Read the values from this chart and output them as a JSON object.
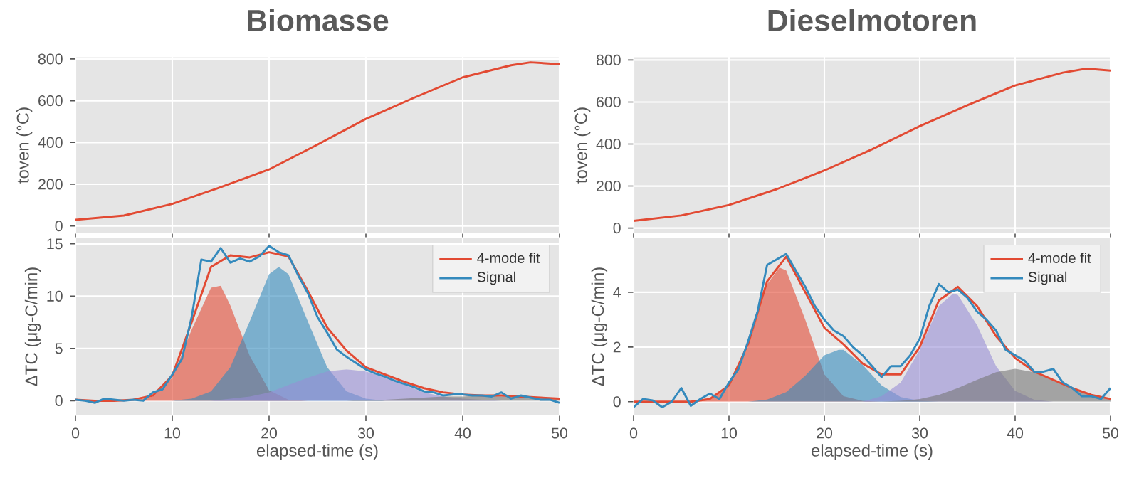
{
  "chart_data": [
    {
      "type": "line",
      "title": "Biomasse",
      "ylabel": "toven (°C)",
      "xlim": [
        0,
        50
      ],
      "ylim": [
        -35,
        810
      ],
      "xticks": [
        {
          "value": 0,
          "label": null
        },
        {
          "value": 10,
          "label": null
        },
        {
          "value": 20,
          "label": null
        },
        {
          "value": 30,
          "label": null
        },
        {
          "value": 40,
          "label": null
        },
        {
          "value": 50,
          "label": null
        }
      ],
      "yticks": [
        0,
        200,
        400,
        600,
        800
      ],
      "grid": true,
      "tick_labels": "y",
      "series": [
        {
          "type": "line",
          "color": "#e24a33",
          "x": [
            0,
            5,
            10,
            14.7,
            20,
            25,
            30,
            35,
            40,
            45,
            47,
            50
          ],
          "values": [
            30,
            50,
            106,
            181,
            271,
            390,
            513,
            615,
            712,
            770,
            784,
            775
          ]
        }
      ]
    },
    {
      "type": "line",
      "title": "Dieselmotoren",
      "ylabel": "toven (°C)",
      "xlim": [
        0,
        50
      ],
      "ylim": [
        -25,
        815
      ],
      "xticks": [
        {
          "value": 0,
          "label": null
        },
        {
          "value": 10,
          "label": null
        },
        {
          "value": 20,
          "label": null
        },
        {
          "value": 30,
          "label": null
        },
        {
          "value": 40,
          "label": null
        },
        {
          "value": 50,
          "label": null
        }
      ],
      "yticks": [
        0,
        200,
        400,
        600,
        800
      ],
      "grid": true,
      "tick_labels": "y",
      "series": [
        {
          "type": "line",
          "color": "#e24a33",
          "x": [
            0,
            5,
            10,
            15,
            20,
            25,
            30,
            35,
            40,
            45,
            47.5,
            50
          ],
          "values": [
            34,
            60,
            110,
            185,
            274,
            375,
            485,
            585,
            679,
            740,
            759,
            750
          ]
        }
      ]
    },
    {
      "type": "line",
      "xlabel": "elapsed-time (s)",
      "ylabel": "ΔTC (μg-C/min)",
      "xlim": [
        0,
        50
      ],
      "ylim": [
        -1.4,
        15.6
      ],
      "xticks": [
        0,
        10,
        20,
        30,
        40,
        50
      ],
      "yticks": [
        0,
        5,
        10,
        15
      ],
      "grid": true,
      "legend": "top right",
      "series": [
        {
          "type": "area",
          "color": "#e24a33",
          "x": [
            0,
            2,
            4,
            6,
            8,
            10,
            12,
            14,
            15,
            16,
            18,
            20,
            22,
            24,
            26,
            50
          ],
          "values": [
            0,
            0,
            0,
            0,
            0.4,
            2.2,
            6.8,
            10.8,
            11,
            9.1,
            4.3,
            1.0,
            0.1,
            0,
            0,
            0
          ]
        },
        {
          "type": "area",
          "color": "#348abd",
          "x": [
            0,
            10,
            12,
            14,
            16,
            18,
            20,
            21,
            22,
            24,
            26,
            28,
            30,
            32,
            50
          ],
          "values": [
            0,
            0,
            0.2,
            0.9,
            3.2,
            7.6,
            12.1,
            12.8,
            12.1,
            7.6,
            3.2,
            0.9,
            0.2,
            0,
            0
          ]
        },
        {
          "type": "area",
          "color": "#988ed5",
          "x": [
            0,
            14,
            16,
            18,
            20,
            22,
            24,
            26,
            28,
            30,
            32,
            34,
            36,
            38,
            40,
            42,
            44,
            50
          ],
          "values": [
            0,
            0,
            0.2,
            0.4,
            0.8,
            1.5,
            2.2,
            2.8,
            3.0,
            2.8,
            2.2,
            1.5,
            0.8,
            0.4,
            0.2,
            0.1,
            0,
            0
          ]
        },
        {
          "type": "area",
          "color": "#777777",
          "x": [
            0,
            26,
            28,
            30,
            32,
            34,
            36,
            38,
            40,
            42,
            44,
            46,
            48,
            50
          ],
          "values": [
            0,
            0,
            0,
            0.1,
            0.1,
            0.2,
            0.3,
            0.4,
            0.4,
            0.5,
            0.4,
            0.4,
            0.3,
            0.2
          ]
        },
        {
          "type": "line",
          "name": "4-mode fit",
          "color": "#e24a33",
          "x": [
            0,
            2,
            4,
            6,
            8,
            10,
            12,
            14,
            16,
            18,
            20,
            22,
            24,
            26,
            28,
            30,
            32,
            34,
            36,
            38,
            40,
            42,
            44,
            46,
            48,
            50
          ],
          "values": [
            0.1,
            0,
            0,
            0.1,
            0.5,
            2.4,
            7.5,
            12.8,
            13.9,
            13.7,
            14.2,
            13.8,
            10.5,
            7.0,
            4.8,
            3.2,
            2.5,
            1.8,
            1.2,
            0.8,
            0.6,
            0.5,
            0.5,
            0.4,
            0.3,
            0.2
          ]
        },
        {
          "type": "line",
          "name": "Signal",
          "color": "#348abd",
          "x": [
            0,
            1,
            2,
            3,
            4,
            5,
            6,
            7,
            8,
            9,
            10,
            11,
            12,
            13,
            14,
            15,
            16,
            17,
            18,
            19,
            20,
            21,
            22,
            23,
            24,
            25,
            26,
            27,
            28,
            29,
            30,
            31,
            32,
            33,
            34,
            35,
            36,
            37,
            38,
            39,
            40,
            41,
            42,
            43,
            44,
            45,
            46,
            47,
            48,
            49,
            50
          ],
          "values": [
            0.1,
            0,
            -0.2,
            0.2,
            0.1,
            0,
            0.1,
            0,
            0.8,
            1.1,
            2.5,
            4.0,
            8.0,
            13.5,
            13.3,
            14.6,
            13.2,
            13.6,
            13.3,
            13.8,
            14.8,
            14.2,
            13.9,
            12.0,
            10.3,
            8.0,
            6.5,
            4.9,
            4.2,
            3.6,
            3.0,
            2.6,
            2.3,
            1.9,
            1.6,
            1.3,
            0.9,
            0.8,
            0.5,
            0.6,
            0.6,
            0.5,
            0.5,
            0.4,
            0.8,
            0.2,
            0.5,
            0.3,
            0.1,
            0.1,
            -0.2
          ]
        }
      ]
    },
    {
      "type": "line",
      "xlabel": "elapsed-time (s)",
      "ylabel": "ΔTC (μg-C/min)",
      "xlim": [
        0,
        50
      ],
      "ylim": [
        -0.5,
        6.0
      ],
      "xticks": [
        0,
        10,
        20,
        30,
        40,
        50
      ],
      "yticks": [
        0,
        2,
        4
      ],
      "grid": true,
      "legend": "top right",
      "series": [
        {
          "type": "area",
          "color": "#e24a33",
          "x": [
            0,
            6,
            8,
            10,
            12,
            14,
            15.3,
            16,
            18,
            20,
            22,
            24,
            26,
            50
          ],
          "values": [
            0,
            0,
            0.1,
            0.6,
            2.0,
            4.3,
            4.9,
            4.8,
            3.0,
            1.0,
            0.2,
            0.03,
            0,
            0
          ]
        },
        {
          "type": "area",
          "color": "#348abd",
          "x": [
            0,
            12,
            14,
            16,
            18,
            20,
            21.5,
            22,
            24,
            26,
            28,
            30,
            32,
            50
          ],
          "values": [
            0,
            0,
            0.08,
            0.35,
            0.95,
            1.7,
            1.9,
            1.9,
            1.35,
            0.6,
            0.17,
            0.03,
            0,
            0
          ]
        },
        {
          "type": "area",
          "color": "#988ed5",
          "x": [
            0,
            24,
            26,
            28,
            30,
            32,
            33.5,
            34,
            36,
            38,
            40,
            42,
            44,
            50
          ],
          "values": [
            0,
            0,
            0.2,
            0.7,
            1.9,
            3.5,
            3.95,
            3.9,
            2.8,
            1.3,
            0.4,
            0.07,
            0,
            0
          ]
        },
        {
          "type": "area",
          "color": "#777777",
          "x": [
            0,
            24,
            26,
            28,
            30,
            32,
            34,
            36,
            38,
            40,
            42,
            44,
            46,
            48,
            50
          ],
          "values": [
            0,
            0,
            0.01,
            0.03,
            0.1,
            0.25,
            0.5,
            0.8,
            1.08,
            1.2,
            1.08,
            0.8,
            0.5,
            0.25,
            0.1
          ]
        },
        {
          "type": "line",
          "name": "4-mode fit",
          "color": "#e24a33",
          "x": [
            0,
            2,
            4,
            6,
            8,
            10,
            12,
            14,
            16,
            18,
            20,
            22,
            24,
            26,
            28,
            30,
            32,
            34,
            36,
            38,
            40,
            42,
            44,
            46,
            48,
            50
          ],
          "values": [
            0,
            0,
            0,
            0,
            0.1,
            0.6,
            2.1,
            4.4,
            5.3,
            4.0,
            2.7,
            2.1,
            1.4,
            1.0,
            1.0,
            2.0,
            3.7,
            4.2,
            3.5,
            2.4,
            1.6,
            1.1,
            0.8,
            0.5,
            0.25,
            0.1
          ]
        },
        {
          "type": "line",
          "name": "Signal",
          "color": "#348abd",
          "x": [
            0,
            1,
            2,
            3,
            4,
            5,
            6,
            7,
            8,
            9,
            10,
            11,
            12,
            13,
            14,
            15,
            16,
            17,
            18,
            19,
            20,
            21,
            22,
            23,
            24,
            25,
            26,
            27,
            28,
            29,
            30,
            31,
            32,
            33,
            34,
            35,
            36,
            37,
            38,
            39,
            40,
            41,
            42,
            43,
            44,
            45,
            46,
            47,
            48,
            49,
            50
          ],
          "values": [
            -0.2,
            0.1,
            0.05,
            -0.2,
            0,
            0.5,
            -0.15,
            0.1,
            0.3,
            0.1,
            0.7,
            1.2,
            2.2,
            3.3,
            5.0,
            5.2,
            5.4,
            4.8,
            4.2,
            3.5,
            3.0,
            2.6,
            2.4,
            2.0,
            1.7,
            1.3,
            0.9,
            1.3,
            1.3,
            1.7,
            2.3,
            3.5,
            4.3,
            4.0,
            4.1,
            3.8,
            3.3,
            3.0,
            2.6,
            1.9,
            1.7,
            1.5,
            1.1,
            1.1,
            1.2,
            0.7,
            0.5,
            0.2,
            0.2,
            0.1,
            0.5
          ]
        }
      ]
    }
  ]
}
